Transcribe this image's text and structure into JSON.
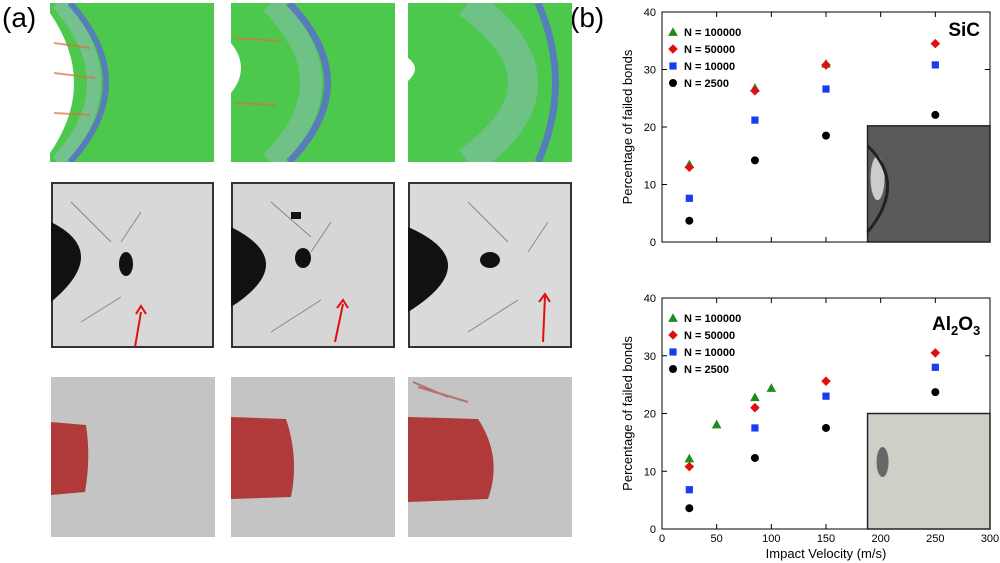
{
  "labels": {
    "a": "(a)",
    "b": "(b)"
  },
  "tiles": {
    "row1": [
      "simulation-green-1",
      "simulation-green-2",
      "simulation-green-3"
    ],
    "row2": [
      "experiment-photo-1",
      "experiment-photo-2",
      "experiment-photo-3"
    ],
    "row3": [
      "simulation-damage-1",
      "simulation-damage-2",
      "simulation-damage-3"
    ]
  },
  "chart_data": [
    {
      "type": "scatter",
      "title": "SiC",
      "xlabel": "",
      "ylabel": "Percentage of failed bonds",
      "xlim": [
        0,
        300
      ],
      "ylim": [
        0,
        40
      ],
      "xticks": [
        0,
        50,
        100,
        150,
        200,
        250,
        300
      ],
      "yticks": [
        0,
        10,
        20,
        30,
        40
      ],
      "legend_position": "top-left",
      "series": [
        {
          "name": "N = 100000",
          "color": "#1e8c1e",
          "marker": "triangle",
          "x": [
            25,
            85,
            150
          ],
          "y": [
            13.5,
            26.8,
            31.0
          ]
        },
        {
          "name": "N = 50000",
          "color": "#e01010",
          "marker": "diamond",
          "x": [
            25,
            85,
            150,
            250
          ],
          "y": [
            13.0,
            26.3,
            30.8,
            34.5
          ]
        },
        {
          "name": "N = 10000",
          "color": "#1a3cf0",
          "marker": "square",
          "x": [
            25,
            85,
            150,
            250
          ],
          "y": [
            7.6,
            21.2,
            26.6,
            30.8
          ]
        },
        {
          "name": "N = 2500",
          "color": "#000000",
          "marker": "circle",
          "x": [
            25,
            85,
            150,
            250
          ],
          "y": [
            3.7,
            14.2,
            18.5,
            22.1
          ]
        }
      ]
    },
    {
      "type": "scatter",
      "title": "Al2O3",
      "title_main": "Al",
      "title_sub1": "2",
      "title_mid": "O",
      "title_sub2": "3",
      "xlabel": "Impact Velocity (m/s)",
      "ylabel": "Percentage of failed bonds",
      "xlim": [
        0,
        300
      ],
      "ylim": [
        0,
        40
      ],
      "xticks": [
        0,
        50,
        100,
        150,
        200,
        250,
        300
      ],
      "yticks": [
        0,
        10,
        20,
        30,
        40
      ],
      "legend_position": "top-left",
      "series": [
        {
          "name": "N = 100000",
          "color": "#1e8c1e",
          "marker": "triangle",
          "x": [
            25,
            50,
            85,
            100
          ],
          "y": [
            12.2,
            18.1,
            22.8,
            24.4
          ]
        },
        {
          "name": "N = 50000",
          "color": "#e01010",
          "marker": "diamond",
          "x": [
            25,
            85,
            150,
            250
          ],
          "y": [
            10.8,
            21.0,
            25.6,
            30.5
          ]
        },
        {
          "name": "N = 10000",
          "color": "#1a3cf0",
          "marker": "square",
          "x": [
            25,
            85,
            150,
            250
          ],
          "y": [
            6.8,
            17.5,
            23.0,
            28.0
          ]
        },
        {
          "name": "N = 2500",
          "color": "#000000",
          "marker": "circle",
          "x": [
            25,
            85,
            150,
            250
          ],
          "y": [
            3.6,
            12.3,
            17.5,
            23.7
          ]
        }
      ]
    }
  ]
}
